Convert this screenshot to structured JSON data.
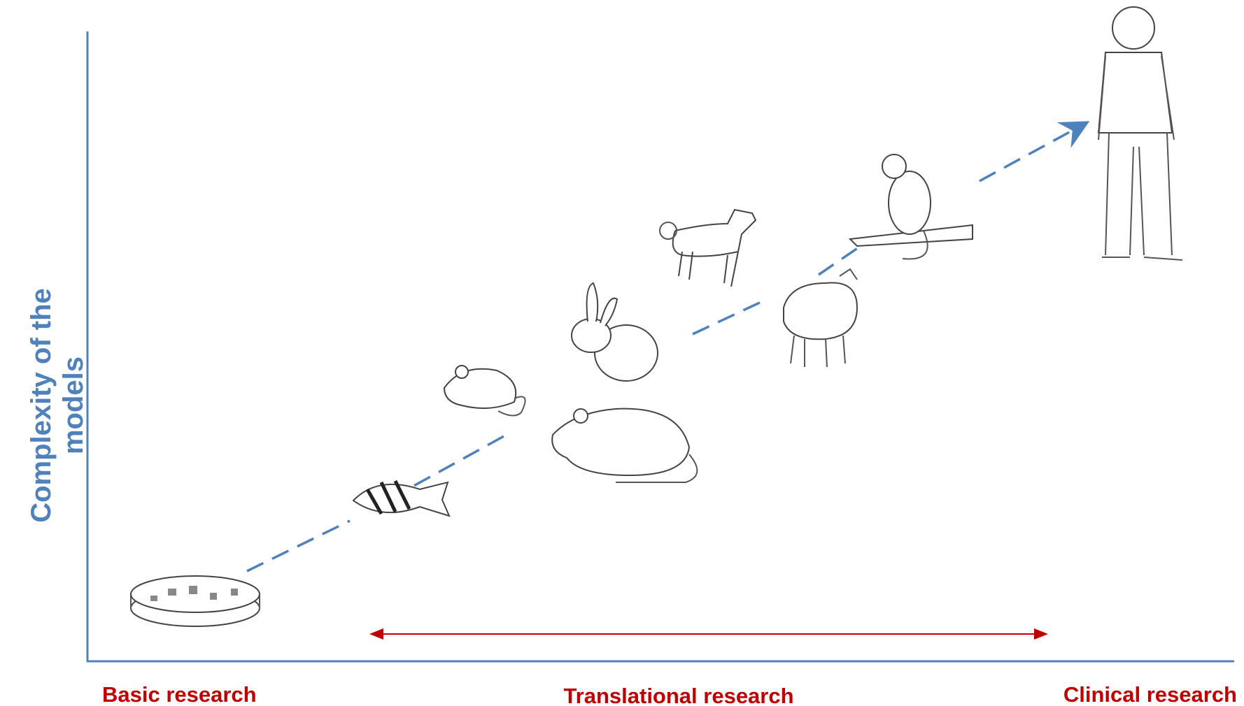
{
  "axis_label": "Complexity of the models",
  "stages": [
    "Basic research",
    "Translational research",
    "Clinical research"
  ]
}
